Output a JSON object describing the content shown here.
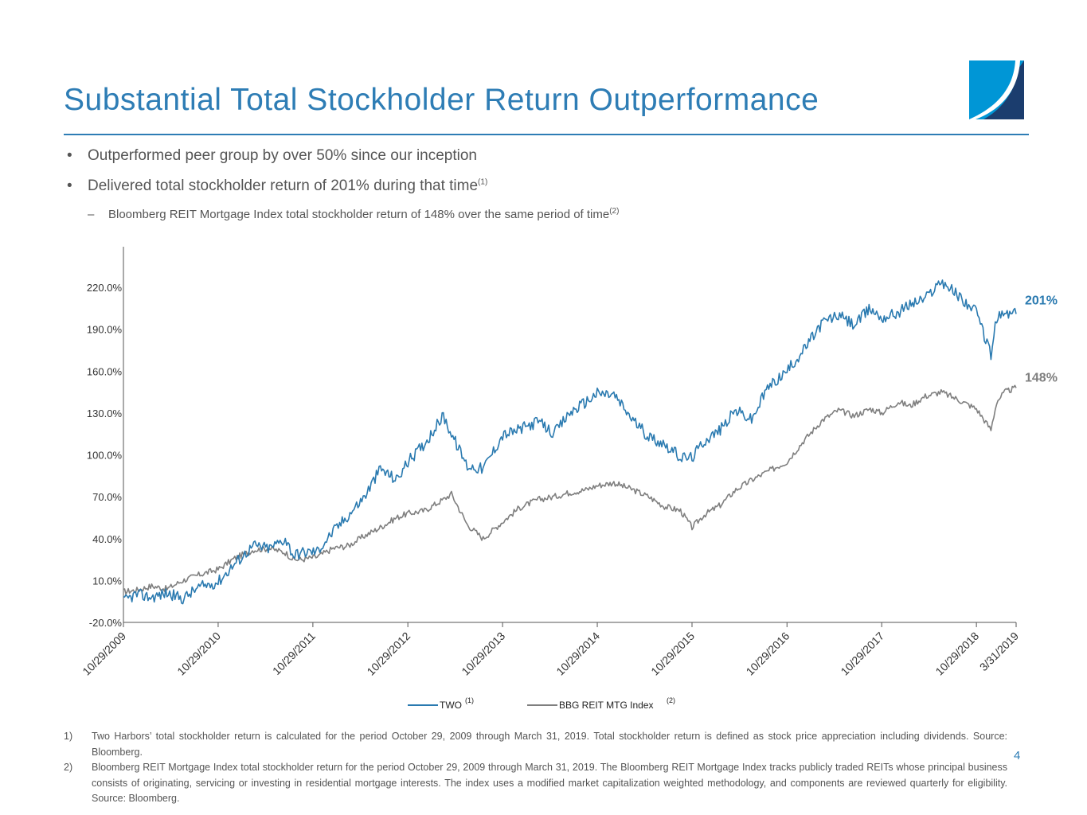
{
  "slide": {
    "title": "Substantial Total Stockholder Return Outperformance",
    "bullets": [
      {
        "marker": "•",
        "text": "Outperformed peer group by over 50% since our inception",
        "sup": ""
      },
      {
        "marker": "•",
        "text": "Delivered total stockholder return of 201% during that time",
        "sup": "(1)"
      }
    ],
    "sub_bullet": {
      "marker": "–",
      "text": "Bloomberg REIT Mortgage Index total stockholder return of 148% over the same period of time",
      "sup": "(2)"
    },
    "footnotes": [
      {
        "num": "1)",
        "text": "Two Harbors’ total stockholder return is calculated for the period October 29, 2009 through March 31, 2019. Total stockholder return is defined as stock price appreciation including dividends. Source: Bloomberg."
      },
      {
        "num": "2)",
        "text": "Bloomberg REIT Mortgage Index total stockholder return for the period October 29, 2009 through March 31, 2019.  The Bloomberg REIT Mortgage Index tracks publicly traded REITs whose principal business consists of originating, servicing or investing in residential mortgage interests.  The index uses a modified market capitalization weighted methodology, and components are reviewed quarterly for eligibility.  Source: Bloomberg."
      }
    ],
    "page_number": "4",
    "logo_colors": [
      "#0096D6",
      "#1B3D6E"
    ]
  },
  "chart_data": {
    "type": "line",
    "title": "",
    "xlabel": "",
    "ylabel": "",
    "ylim": [
      -20,
      240
    ],
    "yticks": [
      -20,
      10,
      40,
      70,
      100,
      130,
      160,
      190,
      220
    ],
    "ytick_labels": [
      "-20.0%",
      "10.0%",
      "40.0%",
      "70.0%",
      "100.0%",
      "130.0%",
      "160.0%",
      "190.0%",
      "220.0%"
    ],
    "x_range": [
      "2009-10-29",
      "2019-03-31"
    ],
    "xtick_labels": [
      "10/29/2009",
      "10/29/2010",
      "10/29/2011",
      "10/29/2012",
      "10/29/2013",
      "10/29/2014",
      "10/29/2015",
      "10/29/2016",
      "10/29/2017",
      "10/29/2018",
      "3/31/2019"
    ],
    "legend_position": "bottom",
    "series": [
      {
        "name": "TWO",
        "sup": "(1)",
        "color": "#2A7AB0",
        "end_label": "201%",
        "x": [
          "2009-10-29",
          "2009-12-15",
          "2010-02-15",
          "2010-04-15",
          "2010-06-15",
          "2010-08-15",
          "2010-10-29",
          "2011-01-01",
          "2011-03-15",
          "2011-05-15",
          "2011-07-15",
          "2011-08-15",
          "2011-09-15",
          "2011-11-15",
          "2012-01-15",
          "2012-03-15",
          "2012-05-15",
          "2012-07-15",
          "2012-09-15",
          "2012-10-29",
          "2013-01-01",
          "2013-03-15",
          "2013-04-15",
          "2013-06-15",
          "2013-08-15",
          "2013-10-29",
          "2014-01-01",
          "2014-03-15",
          "2014-05-15",
          "2014-07-15",
          "2014-09-15",
          "2014-10-29",
          "2015-01-01",
          "2015-03-15",
          "2015-05-15",
          "2015-07-15",
          "2015-09-15",
          "2015-10-29",
          "2015-12-15",
          "2016-02-15",
          "2016-04-15",
          "2016-06-15",
          "2016-08-15",
          "2016-10-29",
          "2017-01-01",
          "2017-03-15",
          "2017-05-15",
          "2017-07-15",
          "2017-09-15",
          "2017-10-29",
          "2018-01-01",
          "2018-02-15",
          "2018-04-15",
          "2018-06-15",
          "2018-08-15",
          "2018-10-29",
          "2018-12-24",
          "2019-01-15",
          "2019-02-15",
          "2019-03-31"
        ],
        "y": [
          -5,
          0,
          -2,
          1,
          -3,
          5,
          9,
          22,
          35,
          33,
          40,
          28,
          30,
          31,
          45,
          57,
          70,
          90,
          82,
          95,
          108,
          128,
          115,
          92,
          90,
          114,
          118,
          124,
          115,
          130,
          138,
          144,
          143,
          125,
          113,
          108,
          98,
          98,
          110,
          118,
          132,
          125,
          148,
          160,
          175,
          195,
          200,
          193,
          205,
          198,
          202,
          208,
          212,
          225,
          215,
          202,
          172,
          198,
          201,
          201
        ]
      },
      {
        "name": "BBG REIT MTG Index",
        "sup": "(2)",
        "color": "#7F7F7F",
        "end_label": "148%",
        "x": [
          "2009-10-29",
          "2009-12-15",
          "2010-02-15",
          "2010-04-15",
          "2010-06-15",
          "2010-08-15",
          "2010-10-29",
          "2011-01-01",
          "2011-03-15",
          "2011-05-15",
          "2011-07-15",
          "2011-08-15",
          "2011-09-15",
          "2011-11-15",
          "2012-01-15",
          "2012-03-15",
          "2012-05-15",
          "2012-07-15",
          "2012-09-15",
          "2012-10-29",
          "2013-01-01",
          "2013-03-15",
          "2013-04-15",
          "2013-06-15",
          "2013-08-15",
          "2013-10-29",
          "2014-01-01",
          "2014-03-15",
          "2014-05-15",
          "2014-07-15",
          "2014-09-15",
          "2014-10-29",
          "2015-01-01",
          "2015-03-15",
          "2015-05-15",
          "2015-07-15",
          "2015-09-15",
          "2015-10-29",
          "2015-12-15",
          "2016-02-15",
          "2016-04-15",
          "2016-06-15",
          "2016-08-15",
          "2016-10-29",
          "2017-01-01",
          "2017-03-15",
          "2017-05-15",
          "2017-07-15",
          "2017-09-15",
          "2017-10-29",
          "2018-01-01",
          "2018-02-15",
          "2018-04-15",
          "2018-06-15",
          "2018-08-15",
          "2018-10-29",
          "2018-12-24",
          "2019-01-15",
          "2019-02-15",
          "2019-03-31"
        ],
        "y": [
          2,
          3,
          6,
          4,
          10,
          14,
          18,
          26,
          32,
          33,
          30,
          25,
          25,
          27,
          33,
          35,
          42,
          48,
          55,
          58,
          60,
          68,
          72,
          50,
          40,
          52,
          62,
          68,
          70,
          73,
          75,
          78,
          80,
          75,
          70,
          63,
          60,
          48,
          57,
          64,
          75,
          82,
          88,
          95,
          110,
          125,
          132,
          128,
          133,
          130,
          138,
          135,
          142,
          145,
          140,
          133,
          118,
          138,
          145,
          148
        ]
      }
    ]
  }
}
